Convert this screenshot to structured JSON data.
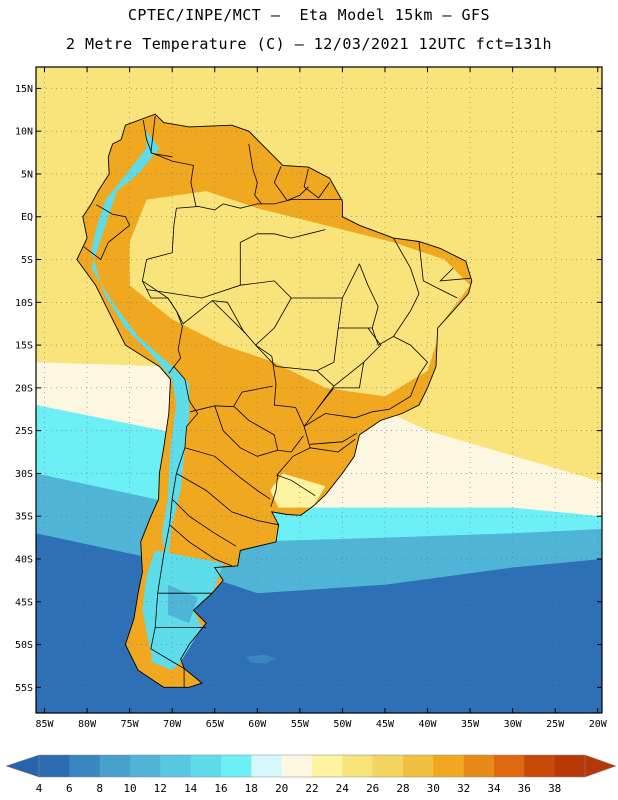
{
  "header": {
    "line1": "CPTEC/INPE/MCT –  Eta Model 15km – GFS",
    "line2": "2 Metre Temperature (C) – 12/03/2021 12UTC fct=131h"
  },
  "axes": {
    "lat_labels": [
      "15N",
      "10N",
      "5N",
      "EQ",
      "5S",
      "10S",
      "15S",
      "20S",
      "25S",
      "30S",
      "35S",
      "40S",
      "45S",
      "50S",
      "55S"
    ],
    "lat_values": [
      15,
      10,
      5,
      0,
      -5,
      -10,
      -15,
      -20,
      -25,
      -30,
      -35,
      -40,
      -45,
      -50,
      -55
    ],
    "lon_labels": [
      "85W",
      "80W",
      "75W",
      "70W",
      "65W",
      "60W",
      "55W",
      "50W",
      "45W",
      "40W",
      "35W",
      "30W",
      "25W",
      "20W"
    ],
    "lon_values": [
      -85,
      -80,
      -75,
      -70,
      -65,
      -60,
      -55,
      -50,
      -45,
      -40,
      -35,
      -30,
      -25,
      -20
    ],
    "lon_range": [
      -86,
      -19.5
    ],
    "lat_range": [
      -58,
      17.5
    ]
  },
  "colorbar": {
    "levels": [
      "4",
      "6",
      "8",
      "10",
      "12",
      "14",
      "16",
      "18",
      "20",
      "22",
      "24",
      "26",
      "28",
      "30",
      "32",
      "34",
      "36",
      "38"
    ],
    "colors": [
      "#2b6cb3",
      "#3a86c0",
      "#4aa0cc",
      "#50b4d6",
      "#58c8e0",
      "#5edcea",
      "#6cf0f6",
      "#d6f8fc",
      "#fdf7e2",
      "#fdf3a0",
      "#f8e47a",
      "#f4d460",
      "#f0c040",
      "#f0a820",
      "#e88a18",
      "#de6810",
      "#c84808",
      "#b83808"
    ],
    "low_color": "#2a63ad",
    "high_color": "#b4380a"
  },
  "field_colors": {
    "ocean_cold": "#2e70b6",
    "ocean_cool": "#50b4d6",
    "ocean_mild": "#6cf0f6",
    "ocean_temperate": "#fdf7e2",
    "ocean_warm": "#f8e47a",
    "land_hot": "#f0a820",
    "andes": "#5edcea"
  }
}
